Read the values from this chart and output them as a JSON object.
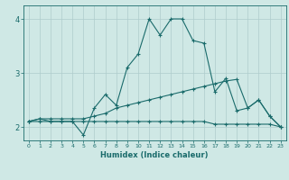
{
  "xlabel": "Humidex (Indice chaleur)",
  "bg_color": "#cfe8e5",
  "grid_color": "#aecccc",
  "line_color": "#1a6b6b",
  "xlim": [
    -0.5,
    23.5
  ],
  "ylim": [
    1.75,
    4.25
  ],
  "xticks": [
    0,
    1,
    2,
    3,
    4,
    5,
    6,
    7,
    8,
    9,
    10,
    11,
    12,
    13,
    14,
    15,
    16,
    17,
    18,
    19,
    20,
    21,
    22,
    23
  ],
  "yticks": [
    2,
    3,
    4
  ],
  "series": [
    {
      "x": [
        0,
        1,
        2,
        3,
        4,
        5,
        6,
        7,
        8,
        9,
        10,
        11,
        12,
        13,
        14,
        15,
        16,
        17,
        18,
        19,
        20,
        21,
        22,
        23
      ],
      "y": [
        2.1,
        2.1,
        2.1,
        2.1,
        2.1,
        2.1,
        2.1,
        2.1,
        2.1,
        2.1,
        2.1,
        2.1,
        2.1,
        2.1,
        2.1,
        2.1,
        2.1,
        2.05,
        2.05,
        2.05,
        2.05,
        2.05,
        2.05,
        2.0
      ]
    },
    {
      "x": [
        0,
        1,
        2,
        3,
        4,
        5,
        6,
        7,
        8,
        9,
        10,
        11,
        12,
        13,
        14,
        15,
        16,
        17,
        18,
        19,
        20,
        21,
        22,
        23
      ],
      "y": [
        2.1,
        2.15,
        2.1,
        2.1,
        2.1,
        1.85,
        2.35,
        2.6,
        2.4,
        3.1,
        3.35,
        4.0,
        3.7,
        4.0,
        4.0,
        3.6,
        3.55,
        2.65,
        2.9,
        2.3,
        2.35,
        2.5,
        2.2,
        2.0
      ]
    },
    {
      "x": [
        0,
        1,
        2,
        3,
        4,
        5,
        6,
        7,
        8,
        9,
        10,
        11,
        12,
        13,
        14,
        15,
        16,
        17,
        18,
        19,
        20,
        21,
        22,
        23
      ],
      "y": [
        2.1,
        2.15,
        2.15,
        2.15,
        2.15,
        2.15,
        2.2,
        2.25,
        2.35,
        2.4,
        2.45,
        2.5,
        2.55,
        2.6,
        2.65,
        2.7,
        2.75,
        2.8,
        2.85,
        2.88,
        2.35,
        2.5,
        2.2,
        2.0
      ]
    }
  ]
}
